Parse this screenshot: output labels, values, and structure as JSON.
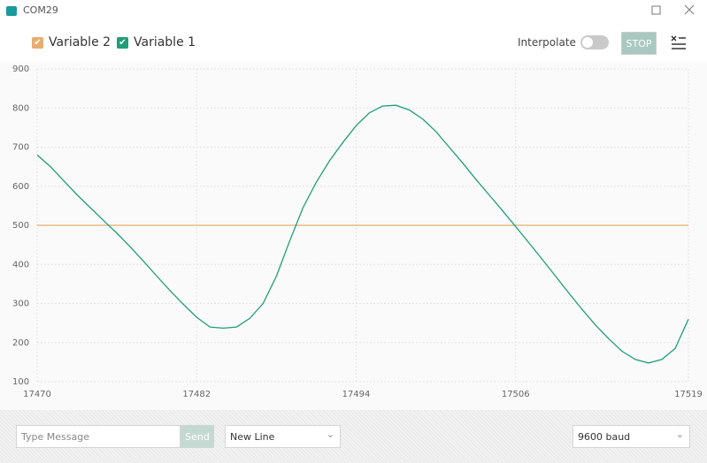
{
  "window": {
    "title": "COM29"
  },
  "toolbar": {
    "interpolate": "Interpolate",
    "stop": "STOP"
  },
  "chart_data": {
    "type": "line",
    "x": [
      17470,
      17471,
      17472,
      17473,
      17474,
      17475,
      17476,
      17477,
      17478,
      17479,
      17480,
      17481,
      17482,
      17483,
      17484,
      17485,
      17486,
      17487,
      17488,
      17489,
      17490,
      17491,
      17492,
      17493,
      17494,
      17495,
      17496,
      17497,
      17498,
      17499,
      17500,
      17501,
      17502,
      17503,
      17504,
      17505,
      17506,
      17507,
      17508,
      17509,
      17510,
      17511,
      17512,
      17513,
      17514,
      17515,
      17516,
      17517,
      17518,
      17519
    ],
    "series": [
      {
        "name": "Variable 2",
        "color": "#e8ad6e",
        "values": [
          500,
          500,
          500,
          500,
          500,
          500,
          500,
          500,
          500,
          500,
          500,
          500,
          500,
          500,
          500,
          500,
          500,
          500,
          500,
          500,
          500,
          500,
          500,
          500,
          500,
          500,
          500,
          500,
          500,
          500,
          500,
          500,
          500,
          500,
          500,
          500,
          500,
          500,
          500,
          500,
          500,
          500,
          500,
          500,
          500,
          500,
          500,
          500,
          500,
          500
        ]
      },
      {
        "name": "Variable 1",
        "color": "#1f9e78",
        "values": [
          680,
          650,
          614,
          578,
          545,
          512,
          480,
          445,
          408,
          370,
          333,
          298,
          265,
          240,
          237,
          240,
          262,
          300,
          370,
          460,
          545,
          610,
          665,
          712,
          755,
          788,
          805,
          807,
          795,
          772,
          740,
          700,
          660,
          618,
          578,
          538,
          497,
          455,
          413,
          370,
          327,
          285,
          245,
          210,
          178,
          157,
          148,
          157,
          185,
          260
        ]
      }
    ],
    "xlim": [
      17470,
      17519
    ],
    "ylim": [
      100,
      900
    ],
    "xticks": [
      17470,
      17482,
      17494,
      17506,
      17519
    ],
    "yticks": [
      100,
      200,
      300,
      400,
      500,
      600,
      700,
      800,
      900
    ],
    "grid": true
  },
  "footer": {
    "message": "Type Message",
    "send": "Send",
    "line_ending": "New Line",
    "baud": "9600 baud"
  }
}
